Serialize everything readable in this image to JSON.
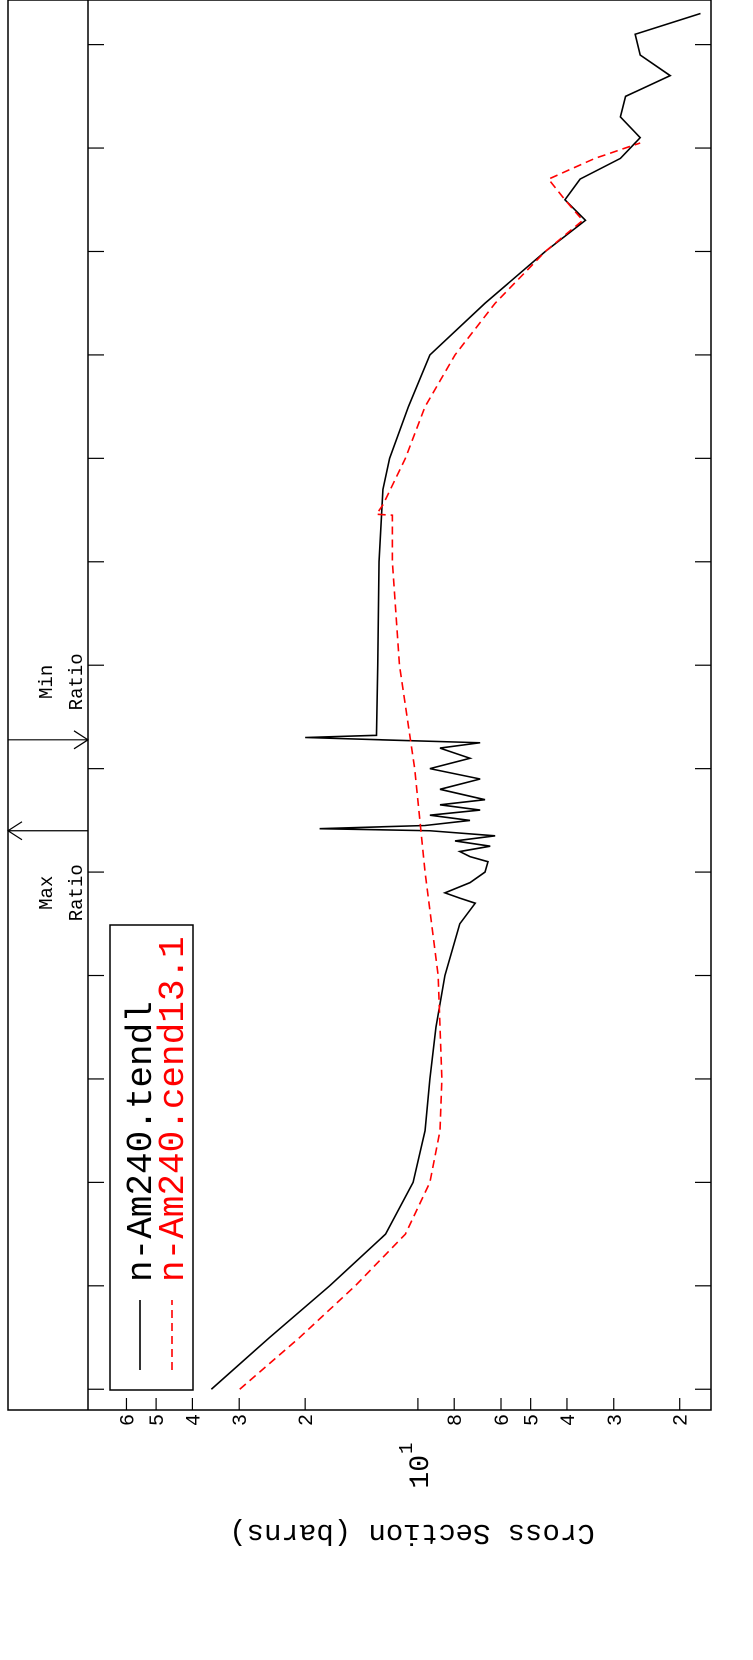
{
  "chart_data": {
    "type": "line",
    "xlog": true,
    "ylog": true,
    "ylabel": "Cross Section (barns)",
    "xlim": [
      6.3e-06,
      270000000.0
    ],
    "ylim": [
      1.65,
      76
    ],
    "xticks": [
      1e-05,
      0.0001,
      0.001,
      0.01,
      0.1,
      1,
      10,
      100,
      1000,
      10000.0,
      100000.0,
      1000000.0,
      10000000.0,
      100000000.0
    ],
    "yticks": [
      2,
      3,
      4,
      5,
      6,
      8,
      {
        "value": 10,
        "label": "10",
        "sup": "1"
      },
      {
        "value": 20,
        "label": "2"
      },
      {
        "value": 30,
        "label": "3"
      },
      {
        "value": 40,
        "label": "4"
      },
      {
        "value": 50,
        "label": "5"
      },
      {
        "value": 60,
        "label": "6"
      }
    ],
    "legend": "upper left",
    "series": [
      {
        "name": "n-Am240.tendl",
        "color": "#000000",
        "dashed": false,
        "x": [
          1e-05,
          3.16e-05,
          0.0001,
          0.000316,
          0.001,
          0.00316,
          0.01,
          0.0316,
          0.1,
          0.316,
          0.5,
          0.56,
          0.63,
          0.79,
          1,
          1.26,
          1.41,
          1.58,
          1.78,
          2.0,
          2.24,
          2.51,
          2.63,
          2.82,
          3.16,
          3.55,
          3.98,
          4.47,
          5.01,
          6.31,
          7.94,
          10,
          12.6,
          15.8,
          17.8,
          20,
          21,
          100,
          1000,
          5000,
          10000.0,
          31600.0,
          100000.0,
          316000.0,
          1000000.0,
          2000000.0,
          3160000.0,
          5010000.0,
          7940000.0,
          12600000.0,
          20000000.0,
          31600000.0,
          50100000.0,
          79400000.0,
          126000000.0,
          200000000.0
        ],
        "values": [
          35.6,
          24.9,
          17.2,
          12.2,
          10.3,
          9.57,
          9.29,
          8.95,
          8.47,
          7.73,
          7.03,
          7.73,
          8.47,
          7.26,
          6.62,
          6.5,
          7.26,
          7.73,
          6.41,
          7.96,
          6.22,
          9.29,
          18.3,
          9.57,
          7.26,
          9.29,
          6.82,
          8.73,
          6.62,
          8.73,
          6.82,
          9.29,
          7.26,
          8.73,
          6.82,
          20.0,
          12.9,
          12.8,
          12.7,
          12.4,
          11.9,
          10.6,
          9.29,
          6.62,
          4.57,
          3.57,
          4.05,
          3.69,
          2.88,
          2.55,
          2.88,
          2.79,
          2.12,
          2.55,
          2.63,
          1.76
        ]
      },
      {
        "name": "n-Am240.cend13.1",
        "color": "#ff0000",
        "dashed": true,
        "x": [
          1e-05,
          3.16e-05,
          0.0001,
          0.000316,
          0.001,
          0.00316,
          0.01,
          0.1,
          1,
          10,
          100,
          1000,
          2820,
          2880,
          3550,
          10000.0,
          31600.0,
          100000.0,
          316000.0,
          1000000.0,
          2000000.0,
          3160000.0,
          5010000.0,
          7940000.0,
          11200000.0
        ],
        "values": [
          29.9,
          20.7,
          14.7,
          10.8,
          9.29,
          8.73,
          8.63,
          8.83,
          9.57,
          10.2,
          11.2,
          11.7,
          11.7,
          12.9,
          12.4,
          10.8,
          9.57,
          7.96,
          6.22,
          4.57,
          3.63,
          4.05,
          4.48,
          3.37,
          2.55
        ]
      }
    ],
    "annotations": [
      {
        "lines": [
          "Max",
          "Ratio"
        ],
        "x": 2.51,
        "arrow": "left"
      },
      {
        "lines": [
          "Min",
          "Ratio"
        ],
        "x": 19,
        "arrow": "right"
      }
    ]
  }
}
